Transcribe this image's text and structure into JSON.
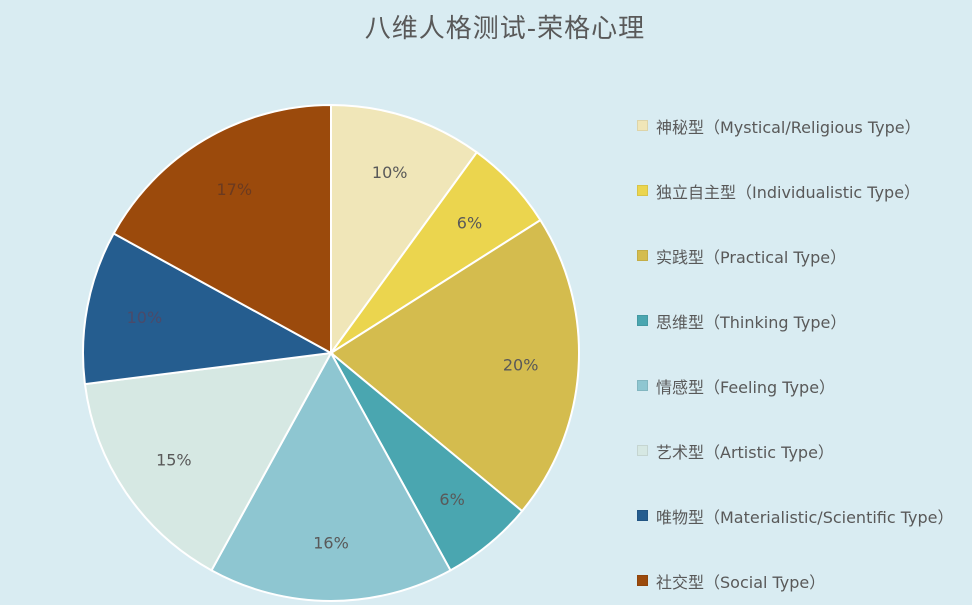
{
  "chart_data": {
    "type": "pie",
    "title": "八维人格测试-荣格心理",
    "legend_position": "right",
    "slices": [
      {
        "name": "神秘型（Mystical/Religious Type）",
        "value": 10,
        "label": "10%",
        "color": "#f0e6b8",
        "label_color": "#595959"
      },
      {
        "name": "独立自主型（Individualistic Type）",
        "value": 6,
        "label": "6%",
        "color": "#ebd54e",
        "label_color": "#595959"
      },
      {
        "name": "实践型（Practical Type）",
        "value": 20,
        "label": "20%",
        "color": "#d4bc4e",
        "label_color": "#595959"
      },
      {
        "name": "思维型（Thinking Type）",
        "value": 6,
        "label": "6%",
        "color": "#4aa6b0",
        "label_color": "#595959"
      },
      {
        "name": "情感型（Feeling Type）",
        "value": 16,
        "label": "16%",
        "color": "#8ec6d1",
        "label_color": "#595959"
      },
      {
        "name": "艺术型（Artistic Type）",
        "value": 15,
        "label": "15%",
        "color": "#d6e8e3",
        "label_color": "#595959"
      },
      {
        "name": "唯物型（Materialistic/Scientific Type）",
        "value": 10,
        "label": "10%",
        "color": "#255d8f",
        "label_color": "#4a4a6a"
      },
      {
        "name": "社交型（Social Type）",
        "value": 17,
        "label": "17%",
        "color": "#9b4a0c",
        "label_color": "#6b3a20"
      }
    ]
  }
}
